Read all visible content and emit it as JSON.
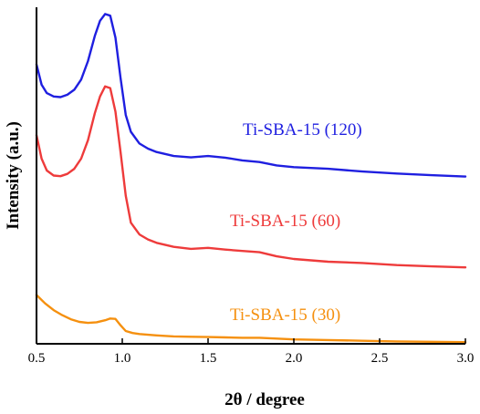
{
  "chart_data": {
    "type": "line",
    "title": "",
    "xlabel": "2θ / degree",
    "ylabel": "Intensity (a.u.)",
    "xlim": [
      0.5,
      3.0
    ],
    "ylim": [
      0,
      100
    ],
    "x_ticks": [
      "0.5",
      "1.0",
      "1.5",
      "2.0",
      "2.5",
      "3.0"
    ],
    "y_ticks_shown": false,
    "grid": false,
    "legend": "inline labels next to each curve",
    "series": [
      {
        "name": "Ti-SBA-15 (120)",
        "color": "#1f1fe0",
        "x": [
          0.5,
          0.53,
          0.56,
          0.6,
          0.64,
          0.68,
          0.72,
          0.76,
          0.8,
          0.84,
          0.87,
          0.9,
          0.93,
          0.96,
          0.99,
          1.02,
          1.05,
          1.1,
          1.15,
          1.2,
          1.3,
          1.4,
          1.5,
          1.6,
          1.7,
          1.8,
          1.9,
          2.0,
          2.2,
          2.4,
          2.6,
          2.8,
          3.0
        ],
        "y": [
          83.0,
          77.0,
          74.5,
          73.5,
          73.3,
          74.0,
          75.5,
          78.5,
          84.0,
          91.5,
          96.0,
          98.0,
          97.5,
          91.0,
          79.0,
          68.0,
          63.0,
          59.5,
          58.0,
          57.0,
          55.8,
          55.4,
          55.8,
          55.3,
          54.5,
          54.0,
          53.0,
          52.5,
          52.0,
          51.2,
          50.6,
          50.1,
          49.7
        ]
      },
      {
        "name": "Ti-SBA-15 (60)",
        "color": "#ee3b3b",
        "x": [
          0.5,
          0.53,
          0.56,
          0.6,
          0.64,
          0.68,
          0.72,
          0.76,
          0.8,
          0.84,
          0.87,
          0.9,
          0.93,
          0.96,
          0.99,
          1.02,
          1.05,
          1.1,
          1.15,
          1.2,
          1.3,
          1.4,
          1.5,
          1.6,
          1.7,
          1.8,
          1.9,
          2.0,
          2.2,
          2.4,
          2.6,
          2.8,
          3.0
        ],
        "y": [
          62.0,
          55.0,
          51.5,
          50.0,
          49.8,
          50.5,
          52.0,
          55.0,
          60.5,
          68.5,
          73.5,
          76.5,
          76.0,
          69.0,
          57.0,
          44.0,
          36.0,
          32.5,
          31.0,
          30.0,
          28.8,
          28.2,
          28.5,
          28.0,
          27.6,
          27.2,
          26.0,
          25.2,
          24.4,
          24.0,
          23.4,
          23.0,
          22.7
        ]
      },
      {
        "name": "Ti-SBA-15 (30)",
        "color": "#f5900f",
        "x": [
          0.5,
          0.55,
          0.6,
          0.65,
          0.7,
          0.75,
          0.8,
          0.85,
          0.9,
          0.93,
          0.96,
          0.99,
          1.02,
          1.06,
          1.1,
          1.2,
          1.3,
          1.4,
          1.5,
          1.6,
          1.7,
          1.8,
          2.0,
          2.2,
          2.4,
          2.6,
          2.8,
          3.0
        ],
        "y": [
          14.5,
          12.0,
          10.0,
          8.5,
          7.3,
          6.5,
          6.2,
          6.4,
          7.0,
          7.5,
          7.4,
          5.5,
          3.8,
          3.2,
          2.9,
          2.5,
          2.2,
          2.1,
          2.0,
          1.9,
          1.8,
          1.8,
          1.3,
          1.1,
          0.9,
          0.7,
          0.6,
          0.5
        ]
      }
    ],
    "series_label_positions": [
      {
        "series": 0,
        "x": 2.05,
        "y": 62.0
      },
      {
        "series": 1,
        "x": 1.95,
        "y": 35.0
      },
      {
        "series": 2,
        "x": 1.95,
        "y": 7.0
      }
    ]
  }
}
